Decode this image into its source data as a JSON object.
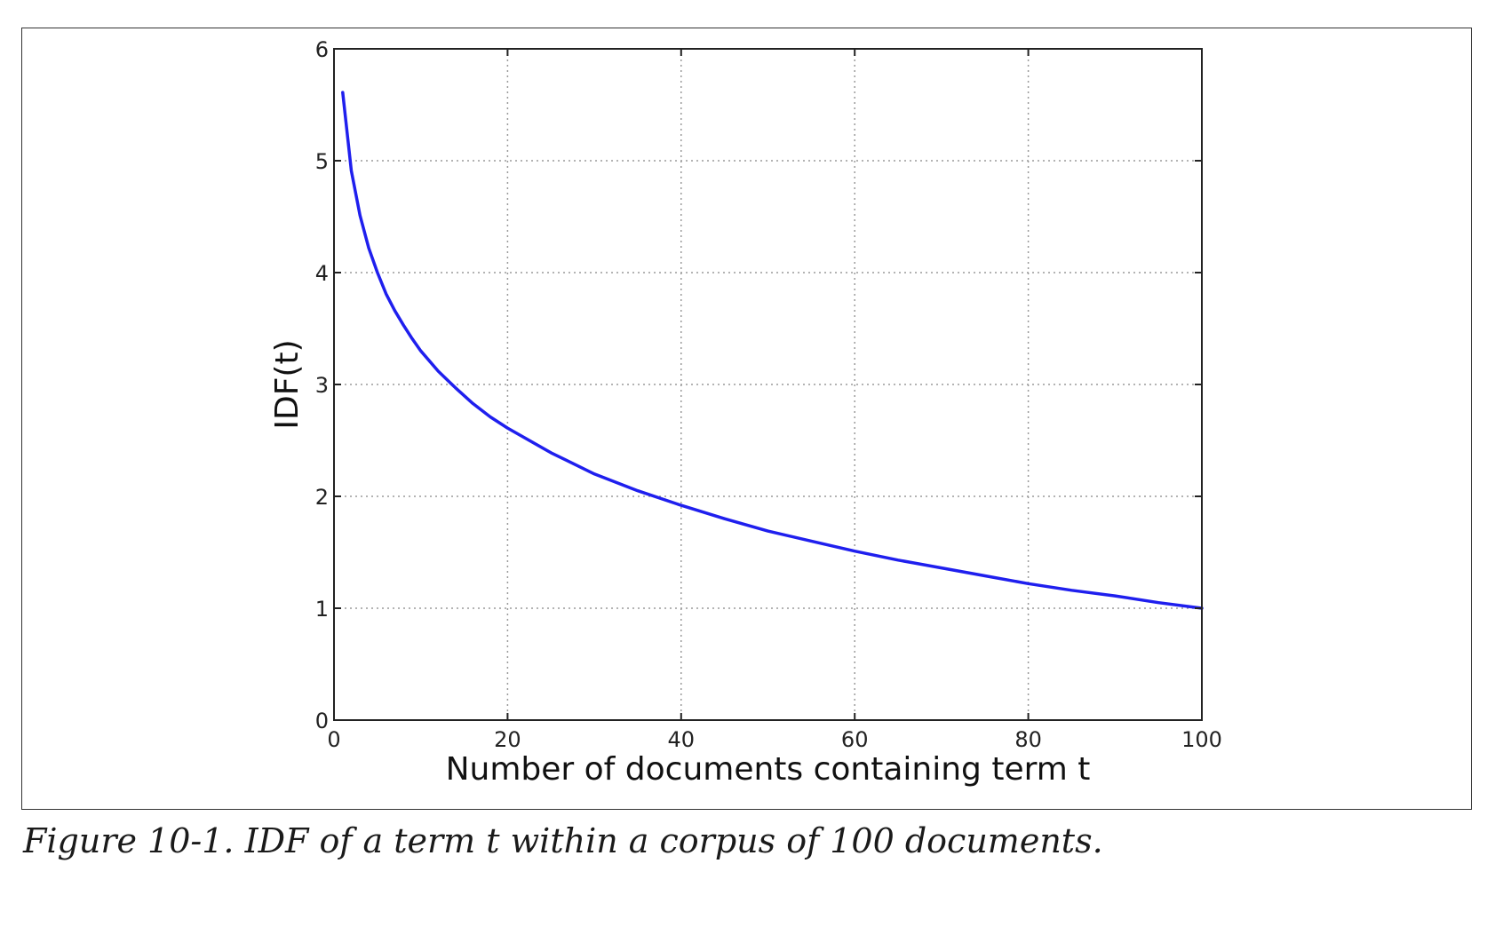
{
  "caption": "Figure 10-1. IDF of a term t within a corpus of 100 documents.",
  "chart_data": {
    "type": "line",
    "title": "",
    "xlabel": "Number of documents containing term t",
    "ylabel": "IDF(t)",
    "xlim": [
      0,
      100
    ],
    "ylim": [
      0,
      6
    ],
    "xticks": [
      0,
      20,
      40,
      60,
      80,
      100
    ],
    "yticks": [
      0,
      1,
      2,
      3,
      4,
      5,
      6
    ],
    "grid": true,
    "legend": "none",
    "line_color": "#1f1fee",
    "series": [
      {
        "x": [
          1,
          2,
          3,
          4,
          5,
          6,
          7,
          8,
          9,
          10,
          12,
          14,
          16,
          18,
          20,
          25,
          30,
          35,
          40,
          45,
          50,
          55,
          60,
          65,
          70,
          75,
          80,
          85,
          90,
          95,
          100
        ],
        "values": [
          5.61,
          4.91,
          4.51,
          4.22,
          4.0,
          3.81,
          3.66,
          3.53,
          3.41,
          3.3,
          3.12,
          2.97,
          2.83,
          2.71,
          2.61,
          2.39,
          2.2,
          2.05,
          1.92,
          1.8,
          1.69,
          1.6,
          1.51,
          1.43,
          1.36,
          1.29,
          1.22,
          1.16,
          1.11,
          1.05,
          1.0
        ]
      }
    ]
  }
}
